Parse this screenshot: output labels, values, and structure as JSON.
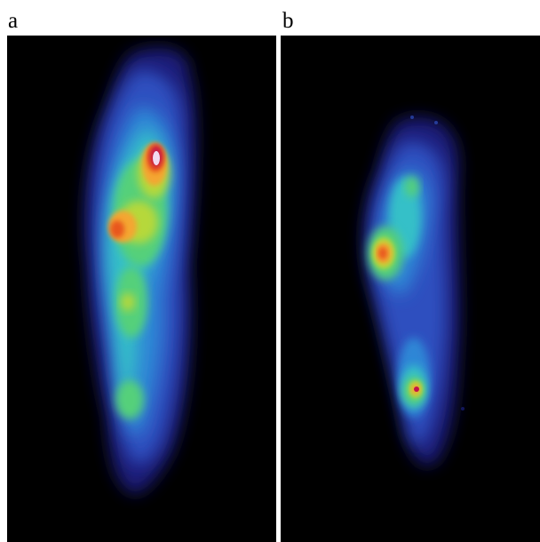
{
  "figure": {
    "panels": [
      {
        "label": "a"
      },
      {
        "label": "b"
      }
    ],
    "colormap": [
      "#06062a",
      "#1a1f7a",
      "#2d4fbf",
      "#2f86d6",
      "#35c0c8",
      "#55d07a",
      "#b6d83a",
      "#f4a630",
      "#e8561e",
      "#c4124a",
      "#f2d9f0"
    ]
  }
}
